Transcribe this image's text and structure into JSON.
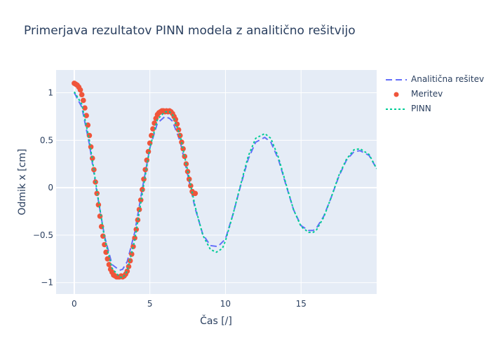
{
  "chart_data": {
    "type": "line",
    "title": "Primerjava rezultatov PINN modela z analitično rešitvijo",
    "xlabel": "Čas [/]",
    "ylabel": "Odmik x [cm]",
    "xlim": [
      -1.2,
      20
    ],
    "ylim": [
      -1.12,
      1.24
    ],
    "x_ticks": [
      0,
      5,
      10,
      15
    ],
    "y_ticks": [
      -1,
      -0.5,
      0,
      0.5,
      1
    ],
    "x_tick_labels": [
      "0",
      "5",
      "10",
      "15"
    ],
    "y_tick_labels": [
      "−1",
      "−0.5",
      "0",
      "0.5",
      "1"
    ],
    "grid": true,
    "legend_position": "top-right",
    "series": [
      {
        "name": "Analitična rešitev",
        "style": "dash",
        "color": "#636efa",
        "x": [
          0,
          0.5,
          1,
          1.5,
          2,
          2.5,
          3,
          3.2,
          3.5,
          4,
          4.5,
          5,
          5.5,
          6,
          6.3,
          6.5,
          7,
          7.5,
          8,
          8.5,
          9,
          9.5,
          10,
          10.5,
          11,
          11.5,
          12,
          12.6,
          13,
          13.5,
          14,
          14.5,
          15,
          15.5,
          15.8,
          16,
          16.5,
          17,
          17.5,
          18,
          18.5,
          18.9,
          19.5,
          20
        ],
        "y": [
          1.0,
          0.85,
          0.46,
          -0.05,
          -0.51,
          -0.81,
          -0.87,
          -0.86,
          -0.78,
          -0.47,
          -0.01,
          0.42,
          0.68,
          0.75,
          0.73,
          0.7,
          0.49,
          0.14,
          -0.22,
          -0.49,
          -0.61,
          -0.62,
          -0.54,
          -0.28,
          0.02,
          0.3,
          0.48,
          0.53,
          0.48,
          0.3,
          0.03,
          -0.23,
          -0.4,
          -0.45,
          -0.45,
          -0.43,
          -0.3,
          -0.1,
          0.12,
          0.29,
          0.38,
          0.39,
          0.34,
          0.2
        ]
      },
      {
        "name": "Meritev",
        "style": "markers",
        "color": "#ef553b",
        "x": [
          0,
          0.1,
          0.2,
          0.3,
          0.4,
          0.5,
          0.6,
          0.7,
          0.8,
          0.9,
          1.0,
          1.1,
          1.2,
          1.3,
          1.4,
          1.5,
          1.6,
          1.7,
          1.8,
          1.9,
          2.0,
          2.1,
          2.2,
          2.3,
          2.4,
          2.5,
          2.6,
          2.7,
          2.8,
          2.9,
          3.0,
          3.1,
          3.2,
          3.3,
          3.4,
          3.5,
          3.6,
          3.7,
          3.8,
          3.9,
          4.0,
          4.1,
          4.2,
          4.3,
          4.4,
          4.5,
          4.6,
          4.7,
          4.8,
          4.9,
          5.0,
          5.1,
          5.2,
          5.3,
          5.4,
          5.5,
          5.6,
          5.7,
          5.8,
          5.9,
          6.0,
          6.1,
          6.2,
          6.3,
          6.4,
          6.5,
          6.6,
          6.7,
          6.8,
          6.9,
          7.0,
          7.1,
          7.2,
          7.3,
          7.4,
          7.5,
          7.6,
          7.7,
          7.8,
          7.9,
          8.0
        ],
        "y": [
          1.1,
          1.09,
          1.08,
          1.06,
          1.03,
          0.98,
          0.92,
          0.84,
          0.76,
          0.66,
          0.55,
          0.43,
          0.31,
          0.19,
          0.06,
          -0.06,
          -0.18,
          -0.3,
          -0.41,
          -0.51,
          -0.6,
          -0.68,
          -0.75,
          -0.81,
          -0.86,
          -0.89,
          -0.92,
          -0.93,
          -0.94,
          -0.94,
          -0.94,
          -0.93,
          -0.94,
          -0.93,
          -0.91,
          -0.88,
          -0.83,
          -0.77,
          -0.7,
          -0.62,
          -0.53,
          -0.44,
          -0.34,
          -0.23,
          -0.13,
          -0.02,
          0.09,
          0.19,
          0.29,
          0.38,
          0.47,
          0.55,
          0.62,
          0.68,
          0.73,
          0.77,
          0.79,
          0.8,
          0.81,
          0.81,
          0.8,
          0.81,
          0.8,
          0.81,
          0.8,
          0.78,
          0.75,
          0.72,
          0.67,
          0.61,
          0.55,
          0.48,
          0.41,
          0.33,
          0.25,
          0.17,
          0.09,
          0.02,
          -0.04,
          -0.06,
          -0.06
        ]
      },
      {
        "name": "PINN",
        "style": "dot",
        "color": "#00cc96",
        "x": [
          0,
          0.5,
          1,
          1.5,
          2,
          2.5,
          3,
          3.2,
          3.5,
          4,
          4.5,
          5,
          5.5,
          6,
          6.3,
          6.5,
          7,
          7.5,
          8,
          8.5,
          9,
          9.4,
          9.8,
          10,
          10.5,
          11,
          11.5,
          12,
          12.6,
          13,
          13.5,
          14,
          14.5,
          15,
          15.5,
          15.8,
          16,
          16.5,
          17,
          17.5,
          18,
          18.5,
          18.9,
          19.5,
          20
        ],
        "y": [
          1.01,
          0.88,
          0.5,
          -0.03,
          -0.53,
          -0.85,
          -0.94,
          -0.95,
          -0.88,
          -0.55,
          -0.06,
          0.42,
          0.72,
          0.8,
          0.8,
          0.77,
          0.55,
          0.18,
          -0.2,
          -0.5,
          -0.65,
          -0.68,
          -0.64,
          -0.56,
          -0.28,
          0.03,
          0.33,
          0.52,
          0.57,
          0.52,
          0.32,
          0.04,
          -0.23,
          -0.41,
          -0.47,
          -0.47,
          -0.45,
          -0.31,
          -0.1,
          0.13,
          0.3,
          0.4,
          0.41,
          0.35,
          0.2
        ]
      }
    ]
  }
}
